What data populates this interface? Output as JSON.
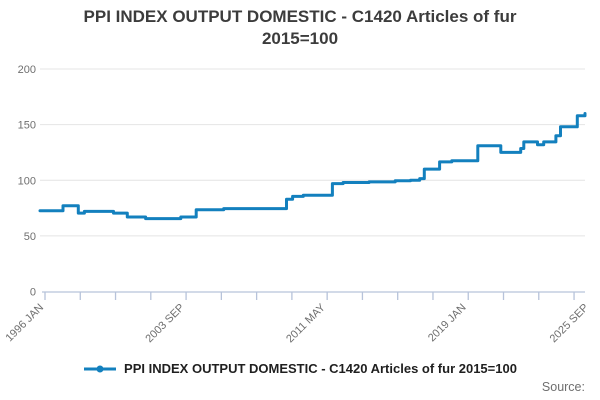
{
  "title": {
    "line1": "PPI INDEX OUTPUT DOMESTIC - C1420 Articles of fur",
    "line2": "2015=100"
  },
  "legend": {
    "label": "PPI INDEX OUTPUT DOMESTIC - C1420 Articles of fur 2015=100"
  },
  "source": {
    "label": "Source:"
  },
  "colors": {
    "line": "#1380be",
    "grid": "#e4e4e4",
    "axis": "#b7c3da",
    "tick_text": "#6f6f6f",
    "title_text": "#3c3c3c"
  },
  "chart_data": {
    "type": "line",
    "title": "PPI INDEX OUTPUT DOMESTIC - C1420 Articles of fur 2015=100",
    "xlabel": "",
    "ylabel": "",
    "x_unit": "months since 1996 JAN (monthly series, stepped)",
    "x_tick_labels": [
      {
        "label": "1996 JAN",
        "month": 0
      },
      {
        "label": "2003 SEP",
        "month": 92
      },
      {
        "label": "2011 MAY",
        "month": 184
      },
      {
        "label": "2019 JAN",
        "month": 276
      },
      {
        "label": "2025 SEP",
        "month": 356
      }
    ],
    "y_ticks": [
      0,
      50,
      100,
      150,
      200
    ],
    "ylim": [
      0,
      210
    ],
    "grid": "horizontal-only",
    "legend_position": "bottom-center",
    "series": [
      {
        "name": "PPI INDEX OUTPUT DOMESTIC - C1420 Articles of fur 2015=100",
        "style": "step-after",
        "end_month": 356,
        "points": [
          [
            0,
            72.5
          ],
          [
            15,
            77
          ],
          [
            25,
            70.5
          ],
          [
            29,
            72
          ],
          [
            48,
            70.5
          ],
          [
            57,
            67
          ],
          [
            69,
            65.5
          ],
          [
            92,
            67
          ],
          [
            102,
            73.5
          ],
          [
            120,
            74.5
          ],
          [
            161,
            83
          ],
          [
            165,
            85.5
          ],
          [
            172,
            86.5
          ],
          [
            191,
            97
          ],
          [
            198,
            98
          ],
          [
            215,
            98.5
          ],
          [
            232,
            99.5
          ],
          [
            242,
            100
          ],
          [
            248,
            101.5
          ],
          [
            251,
            110
          ],
          [
            261,
            116.5
          ],
          [
            269,
            117.5
          ],
          [
            286,
            131
          ],
          [
            301,
            125
          ],
          [
            314,
            128.5
          ],
          [
            316,
            134.5
          ],
          [
            325,
            132
          ],
          [
            329,
            134.5
          ],
          [
            337,
            140
          ],
          [
            340,
            148
          ],
          [
            351,
            158
          ],
          [
            356,
            160
          ]
        ]
      }
    ]
  }
}
